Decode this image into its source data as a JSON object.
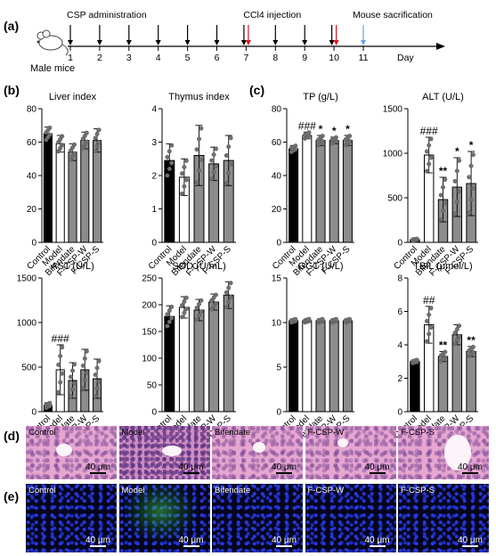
{
  "figure": {
    "panel_letters": [
      "(a)",
      "(b)",
      "(c)",
      "(d)",
      "(e)"
    ],
    "timeline": {
      "subject_label": "Male mice",
      "days": [
        "1",
        "2",
        "3",
        "4",
        "5",
        "6",
        "7",
        "8",
        "9",
        "10",
        "11"
      ],
      "unit_label": "Day",
      "events": [
        {
          "label": "CSP administration",
          "days": [
            "1",
            "2",
            "3",
            "4",
            "5",
            "6",
            "7",
            "8",
            "9",
            "10"
          ],
          "arrow_color": "#000000"
        },
        {
          "label": "CCl4 injection",
          "days": [
            "7",
            "10"
          ],
          "arrow_color": "#e0141e"
        },
        {
          "label": "Mouse sacrification",
          "days": [
            "11"
          ],
          "arrow_color": "#6aa3df"
        }
      ]
    },
    "group_colors": [
      "#000000",
      "#ffffff",
      "#8c8c8c",
      "#8c8c8c",
      "#8c8c8c"
    ],
    "micrographs": {
      "he_labels": [
        "Control",
        "Model",
        "Bifendate",
        "F-CSP-W",
        "F-CSP-S"
      ],
      "fluor_labels": [
        "Control",
        "Model",
        "Bifendate",
        "F-CSP-W",
        "F-CSP-S"
      ],
      "scalebar_label": "40 μm"
    }
  },
  "chart_data": [
    {
      "type": "bar",
      "panel": "b",
      "title": "Liver index",
      "categories": [
        "Control",
        "Model",
        "Bifendate",
        "F-CSP-W",
        "F-CSP-S"
      ],
      "values": [
        65,
        59,
        54,
        61,
        61
      ],
      "errors": [
        4,
        5,
        5,
        5,
        7
      ],
      "ylim": [
        0,
        80
      ],
      "yticks": [
        0,
        20,
        40,
        60,
        80
      ],
      "annotations": [
        "",
        "",
        "",
        "",
        ""
      ],
      "grid": false
    },
    {
      "type": "bar",
      "panel": "b",
      "title": "Thymus index",
      "categories": [
        "Control",
        "Model",
        "Bifendate",
        "F-CSP-W",
        "F-CSP-S"
      ],
      "values": [
        2.45,
        1.95,
        2.6,
        2.35,
        2.45
      ],
      "errors": [
        0.5,
        0.55,
        0.9,
        0.5,
        0.75
      ],
      "ylim": [
        0,
        4
      ],
      "yticks": [
        0,
        1,
        2,
        3,
        4
      ],
      "annotations": [
        "",
        "",
        "",
        "",
        ""
      ],
      "grid": false
    },
    {
      "type": "bar",
      "panel": "c",
      "title": "TP (g/L)",
      "categories": [
        "Control",
        "Model",
        "Bifendate",
        "F-CSP-W",
        "F-CSP-S"
      ],
      "values": [
        56,
        64,
        61,
        61,
        61
      ],
      "errors": [
        2,
        2,
        3,
        2,
        3
      ],
      "ylim": [
        0,
        80
      ],
      "yticks": [
        0,
        20,
        40,
        60,
        80
      ],
      "annotations": [
        "",
        "###",
        "*",
        "*",
        "*"
      ],
      "grid": false
    },
    {
      "type": "bar",
      "panel": "c",
      "title": "ALT (U/L)",
      "categories": [
        "Control",
        "Model",
        "Bifendate",
        "F-CSP-W",
        "F-CSP-S"
      ],
      "values": [
        30,
        980,
        480,
        620,
        660
      ],
      "errors": [
        10,
        200,
        250,
        330,
        360
      ],
      "ylim": [
        0,
        1500
      ],
      "yticks": [
        0,
        500,
        1000,
        1500
      ],
      "annotations": [
        "",
        "###",
        "**",
        "*",
        "*"
      ],
      "grid": false
    },
    {
      "type": "bar",
      "panel": "b",
      "title": "AST (U/L)",
      "categories": [
        "Control",
        "Model",
        "Bifendate",
        "F-CSP-W",
        "F-CSP-S"
      ],
      "values": [
        70,
        470,
        350,
        470,
        370
      ],
      "errors": [
        30,
        280,
        200,
        230,
        220
      ],
      "ylim": [
        0,
        1500
      ],
      "yticks": [
        0,
        500,
        1000,
        1500
      ],
      "annotations": [
        "",
        "###",
        "",
        "",
        ""
      ],
      "grid": false
    },
    {
      "type": "bar",
      "panel": "b",
      "title": "SOD (U/mL)",
      "categories": [
        "Control",
        "Model",
        "Bifendate",
        "F-CSP-W",
        "F-CSP-S"
      ],
      "values": [
        178,
        195,
        190,
        205,
        218
      ],
      "errors": [
        20,
        20,
        20,
        15,
        25
      ],
      "ylim": [
        0,
        250
      ],
      "yticks": [
        0,
        50,
        100,
        150,
        200,
        250
      ],
      "annotations": [
        "",
        "",
        "",
        "",
        ""
      ],
      "grid": false
    },
    {
      "type": "bar",
      "panel": "c",
      "title": "GGT (U/L)",
      "categories": [
        "Control",
        "Model",
        "Bifendate",
        "F-CSP-W",
        "F-CSP-S"
      ],
      "values": [
        10.2,
        10.2,
        10.2,
        10.2,
        10.2
      ],
      "errors": [
        0.2,
        0.2,
        0.2,
        0.2,
        0.2
      ],
      "ylim": [
        0,
        15
      ],
      "yticks": [
        0,
        5,
        10,
        15
      ],
      "annotations": [
        "",
        "",
        "",
        "",
        ""
      ],
      "grid": false
    },
    {
      "type": "bar",
      "panel": "c",
      "title": "TBIL (μmol/L)",
      "categories": [
        "Control",
        "Model",
        "Bifendate",
        "F-CSP-W",
        "F-CSP-S"
      ],
      "values": [
        3.0,
        5.2,
        3.3,
        4.6,
        3.6
      ],
      "errors": [
        0.1,
        1.1,
        0.3,
        0.6,
        0.3
      ],
      "ylim": [
        0,
        8
      ],
      "yticks": [
        0,
        2,
        4,
        6,
        8
      ],
      "annotations": [
        "",
        "##",
        "**",
        "",
        "**"
      ],
      "grid": false
    }
  ]
}
